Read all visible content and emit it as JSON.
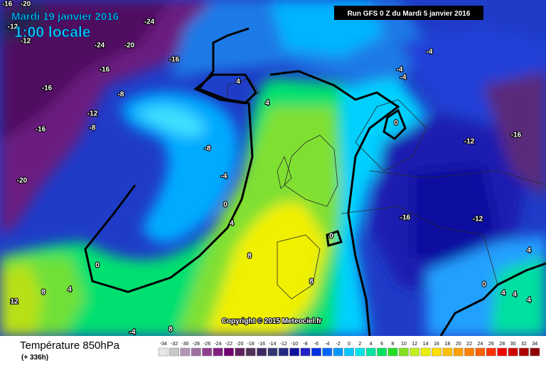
{
  "header": {
    "date": "Mardi 19 janvier 2016",
    "time": "1:00 locale",
    "run": "Run GFS 0 Z du Mardi 5 janvier 2016"
  },
  "map": {
    "labels": [
      -16,
      -20,
      -12,
      -24,
      -12,
      -24,
      -20,
      -16,
      -16,
      -16,
      -8,
      -12,
      -8,
      -16,
      -20,
      -8,
      -4,
      0,
      4,
      8,
      0,
      12,
      8,
      4,
      -4,
      8,
      4,
      4,
      0,
      8,
      -4,
      -4,
      -4,
      0,
      -12,
      -16,
      -16,
      -12,
      0,
      4,
      4,
      4,
      4
    ],
    "copyright": "Copyright © 2015 Meteociel.fr"
  },
  "footer": {
    "title": "Température 850hPa",
    "subtitle": "(+ 336h)"
  },
  "legend": {
    "labels": [
      -34,
      -32,
      -30,
      -28,
      -26,
      -24,
      -22,
      -20,
      -18,
      -16,
      -14,
      -12,
      -10,
      -8,
      -6,
      -4,
      -2,
      0,
      2,
      4,
      6,
      8,
      10,
      12,
      14,
      16,
      18,
      20,
      22,
      24,
      26,
      28,
      30,
      32,
      34
    ],
    "colors": [
      "#e6e6e6",
      "#c8c8c8",
      "#b496b4",
      "#a070a0",
      "#904090",
      "#802080",
      "#700070",
      "#602060",
      "#50305a",
      "#402860",
      "#303870",
      "#202880",
      "#1010a0",
      "#2020c8",
      "#0030e0",
      "#0064ff",
      "#0096ff",
      "#00c8ff",
      "#00e6e6",
      "#00e6a0",
      "#00e060",
      "#20e020",
      "#80e020",
      "#c0f020",
      "#e6f000",
      "#ffe000",
      "#ffc000",
      "#ffa000",
      "#ff8000",
      "#ff6000",
      "#ff3000",
      "#f00000",
      "#d00000",
      "#b00000",
      "#900000"
    ]
  }
}
